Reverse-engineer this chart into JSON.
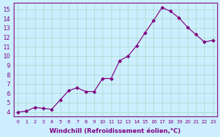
{
  "x_data": [
    0,
    1,
    2,
    3,
    4,
    5,
    6,
    7,
    8,
    9,
    10,
    11,
    12,
    13,
    14,
    15,
    16,
    17,
    18,
    19,
    20,
    21,
    22,
    23
  ],
  "y_data": [
    4.0,
    4.1,
    4.5,
    4.4,
    4.3,
    5.3,
    6.3,
    6.6,
    6.2,
    6.2,
    7.6,
    7.6,
    9.5,
    10.0,
    11.1,
    12.5,
    13.8,
    15.2,
    14.8,
    14.1,
    13.1,
    12.3,
    11.5,
    11.7
  ],
  "xlabel": "Windchill (Refroidissement éolien,°C)",
  "line_color": "#800080",
  "marker_color": "#800080",
  "bg_color": "#cceeff",
  "grid_color": "#aaddcc",
  "xlim": [
    -0.5,
    23.5
  ],
  "ylim": [
    3.5,
    15.7
  ],
  "yticks": [
    4,
    5,
    6,
    7,
    8,
    9,
    10,
    11,
    12,
    13,
    14,
    15
  ],
  "xticks": [
    0,
    1,
    2,
    3,
    4,
    5,
    6,
    7,
    8,
    9,
    10,
    11,
    12,
    13,
    14,
    15,
    16,
    17,
    18,
    19,
    20,
    21,
    22,
    23
  ]
}
